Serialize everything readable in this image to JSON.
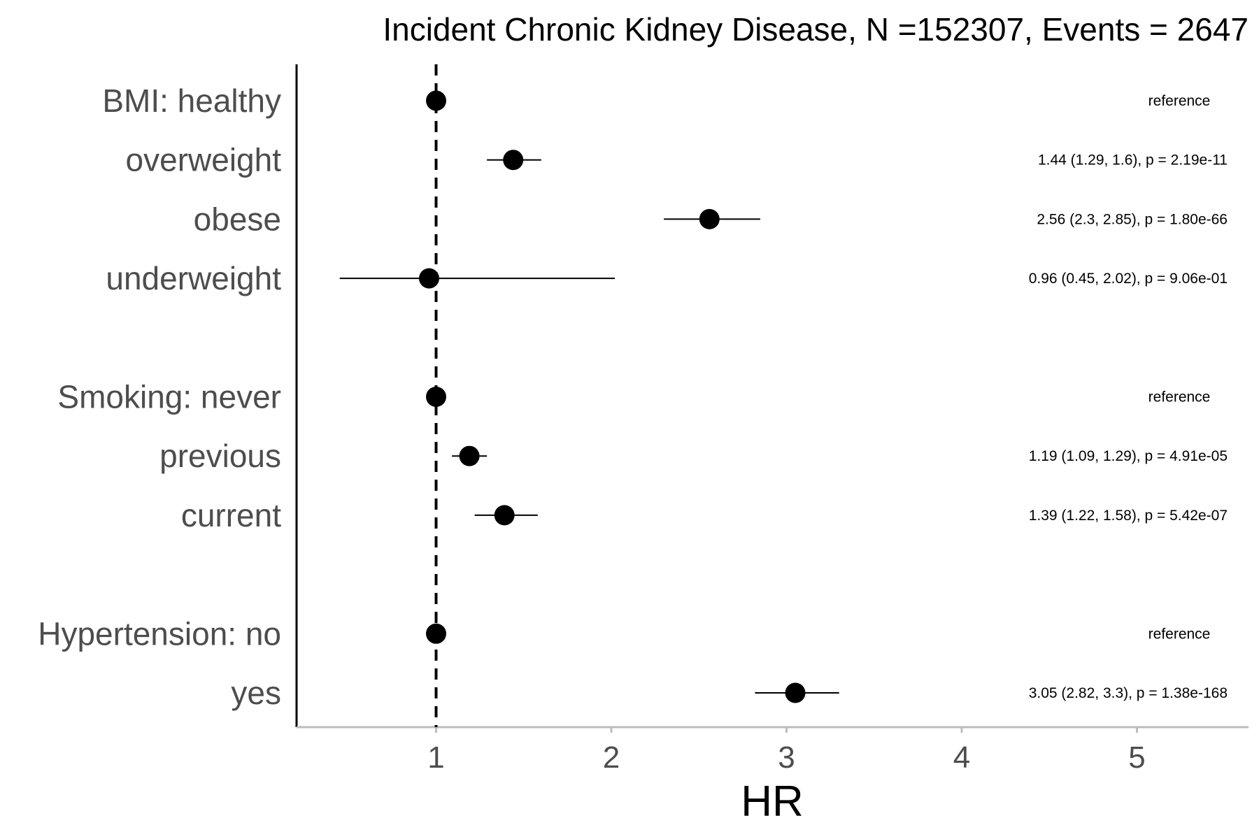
{
  "chart_data": {
    "type": "forest",
    "title": "Incident Chronic Kidney Disease, N =152307, Events = 2647",
    "xlabel": "HR",
    "xlim": [
      0.2,
      5.6
    ],
    "xticks": [
      1,
      2,
      3,
      4,
      5
    ],
    "reference_line": 1,
    "rows": [
      {
        "label": "BMI: healthy",
        "hr": 1.0,
        "lo": null,
        "hi": null,
        "annotation": "reference"
      },
      {
        "label": "overweight",
        "hr": 1.44,
        "lo": 1.29,
        "hi": 1.6,
        "annotation": "1.44 (1.29, 1.6), p = 2.19e-11"
      },
      {
        "label": "obese",
        "hr": 2.56,
        "lo": 2.3,
        "hi": 2.85,
        "annotation": "2.56 (2.3, 2.85), p = 1.80e-66"
      },
      {
        "label": "underweight",
        "hr": 0.96,
        "lo": 0.45,
        "hi": 2.02,
        "annotation": "0.96 (0.45, 2.02), p = 9.06e-01"
      },
      {
        "label": "",
        "hr": null,
        "lo": null,
        "hi": null,
        "annotation": ""
      },
      {
        "label": "Smoking: never",
        "hr": 1.0,
        "lo": null,
        "hi": null,
        "annotation": "reference"
      },
      {
        "label": "previous",
        "hr": 1.19,
        "lo": 1.09,
        "hi": 1.29,
        "annotation": "1.19 (1.09, 1.29), p = 4.91e-05"
      },
      {
        "label": "current",
        "hr": 1.39,
        "lo": 1.22,
        "hi": 1.58,
        "annotation": "1.39 (1.22, 1.58), p = 5.42e-07"
      },
      {
        "label": "",
        "hr": null,
        "lo": null,
        "hi": null,
        "annotation": ""
      },
      {
        "label": "Hypertension: no",
        "hr": 1.0,
        "lo": null,
        "hi": null,
        "annotation": "reference"
      },
      {
        "label": "yes",
        "hr": 3.05,
        "lo": 2.82,
        "hi": 3.3,
        "annotation": "3.05 (2.82, 3.3), p = 1.38e-168"
      }
    ]
  }
}
